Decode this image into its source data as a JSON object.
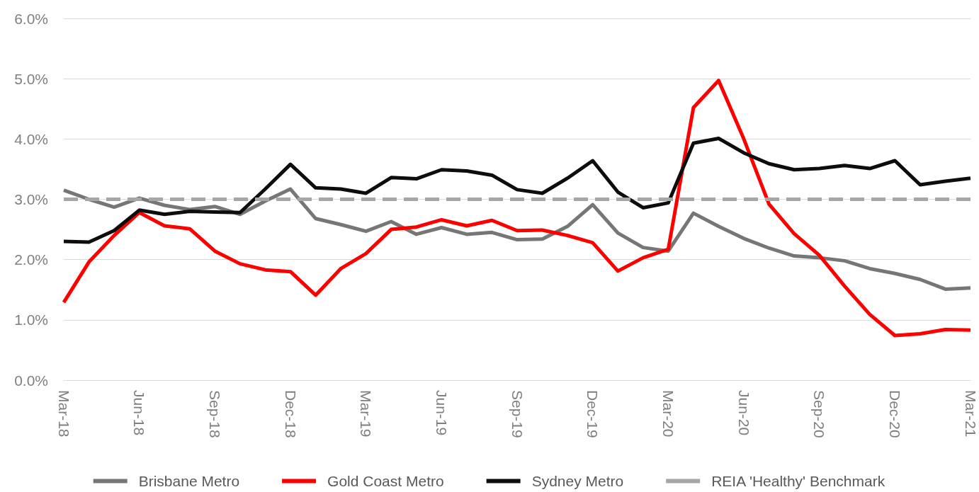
{
  "chart_data": {
    "type": "line",
    "categories": [
      "Mar-18",
      null,
      null,
      "Jun-18",
      null,
      null,
      "Sep-18",
      null,
      null,
      "Dec-18",
      null,
      null,
      "Mar-19",
      null,
      null,
      "Jun-19",
      null,
      null,
      "Sep-19",
      null,
      null,
      "Dec-19",
      null,
      null,
      "Mar-20",
      null,
      null,
      "Jun-20",
      null,
      null,
      "Sep-20",
      null,
      null,
      "Dec-20",
      null,
      null,
      "Mar-21"
    ],
    "series": [
      {
        "name": "Brisbane Metro",
        "color": "#767676",
        "values": [
          3.15,
          3.0,
          2.87,
          3.02,
          2.9,
          2.83,
          2.88,
          2.75,
          2.97,
          3.17,
          2.68,
          2.58,
          2.47,
          2.63,
          2.42,
          2.53,
          2.42,
          2.45,
          2.33,
          2.34,
          2.55,
          2.91,
          2.44,
          2.2,
          2.14,
          2.77,
          2.55,
          2.35,
          2.19,
          2.06,
          2.03,
          1.98,
          1.85,
          1.77,
          1.67,
          1.51,
          1.53
        ]
      },
      {
        "name": "Gold Coast Metro",
        "color": "#ff0000",
        "values": [
          1.29,
          1.96,
          2.4,
          2.78,
          2.56,
          2.51,
          2.14,
          1.93,
          1.83,
          1.8,
          1.41,
          1.85,
          2.1,
          2.5,
          2.54,
          2.66,
          2.56,
          2.65,
          2.48,
          2.49,
          2.4,
          2.28,
          1.81,
          2.03,
          2.17,
          4.52,
          4.97,
          4.0,
          2.92,
          2.43,
          2.07,
          1.56,
          1.09,
          0.74,
          0.77,
          0.84,
          0.83
        ]
      },
      {
        "name": "Sydney Metro",
        "color": "#0d0d0d",
        "values": [
          2.3,
          2.29,
          2.48,
          2.82,
          2.75,
          2.8,
          2.79,
          2.78,
          3.17,
          3.58,
          3.19,
          3.17,
          3.1,
          3.36,
          3.34,
          3.49,
          3.47,
          3.4,
          3.16,
          3.1,
          3.35,
          3.64,
          3.12,
          2.86,
          2.94,
          3.93,
          4.01,
          3.77,
          3.59,
          3.49,
          3.51,
          3.56,
          3.51,
          3.64,
          3.24,
          3.3,
          3.35
        ]
      },
      {
        "name": "REIA 'Healthy' Benchmark",
        "color": "#a6a6a6",
        "line_style": "dashed",
        "values": [
          3,
          3,
          3,
          3,
          3,
          3,
          3,
          3,
          3,
          3,
          3,
          3,
          3,
          3,
          3,
          3,
          3,
          3,
          3,
          3,
          3,
          3,
          3,
          3,
          3,
          3,
          3,
          3,
          3,
          3,
          3,
          3,
          3,
          3,
          3,
          3,
          3
        ]
      }
    ],
    "ylim": [
      0,
      6
    ],
    "yticks": [
      {
        "value": 0,
        "label": "0.0%"
      },
      {
        "value": 1,
        "label": "1.0%"
      },
      {
        "value": 2,
        "label": "2.0%"
      },
      {
        "value": 3,
        "label": "3.0%"
      },
      {
        "value": 4,
        "label": "4.0%"
      },
      {
        "value": 5,
        "label": "5.0%"
      },
      {
        "value": 6,
        "label": "6.0%"
      }
    ],
    "grid": "y",
    "legend": "bottom",
    "marker": "none",
    "line_style": "solid"
  }
}
